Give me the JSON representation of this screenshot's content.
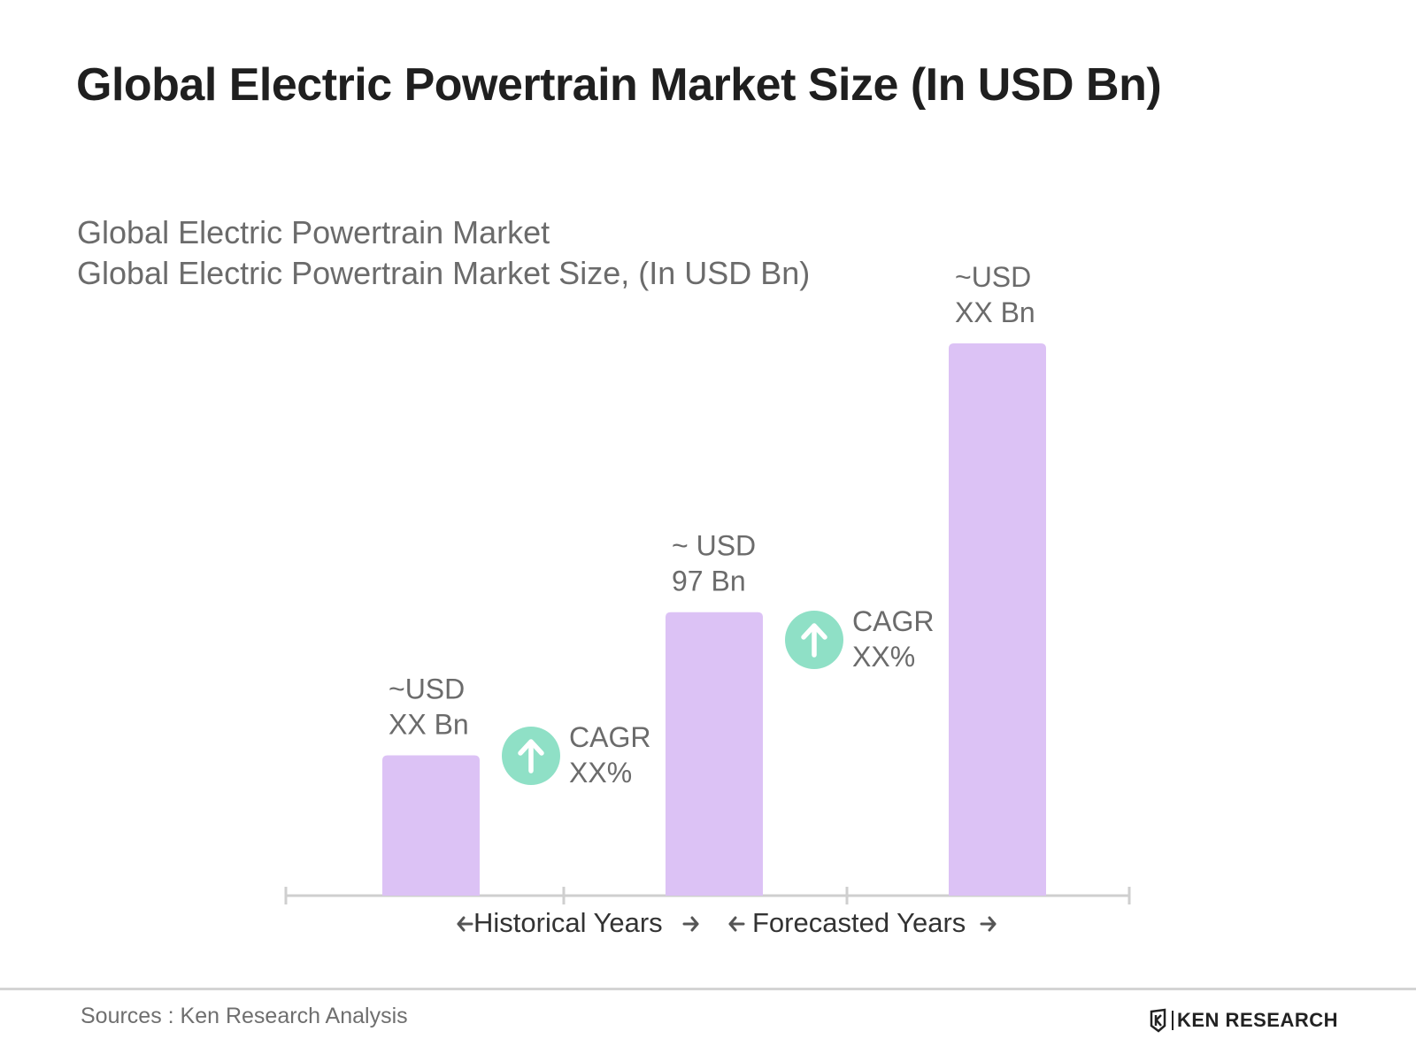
{
  "title": "Global Electric Powertrain Market Size (In USD Bn)",
  "subtitle_line1": "Global Electric Powertrain Market",
  "subtitle_line2": "Global Electric Powertrain Market Size, (In USD Bn)",
  "source": "Sources : Ken Research Analysis",
  "logo_text": "KEN RESEARCH",
  "colors": {
    "bar": "#dcc2f5",
    "cagr_circle": "#8fe0c6",
    "axis": "#cfcfcf",
    "label_text": "#6b6b6b"
  },
  "chart_data": {
    "type": "bar",
    "categories": [
      "",
      "",
      ""
    ],
    "values": [
      48,
      97,
      189
    ],
    "value_labels": [
      [
        "~USD",
        "XX Bn"
      ],
      [
        "~ USD",
        "97 Bn"
      ],
      [
        "~USD",
        "XX Bn"
      ]
    ],
    "cagr": [
      {
        "label": "CAGR",
        "value": "XX%",
        "icon": "arrow-up-icon"
      },
      {
        "label": "CAGR",
        "value": "XX%",
        "icon": "arrow-up-icon"
      }
    ],
    "axis_segments": [
      "Historical Years",
      "Forecasted Years"
    ],
    "xlabel": "",
    "ylabel": "",
    "grid": false,
    "legend": "none"
  }
}
